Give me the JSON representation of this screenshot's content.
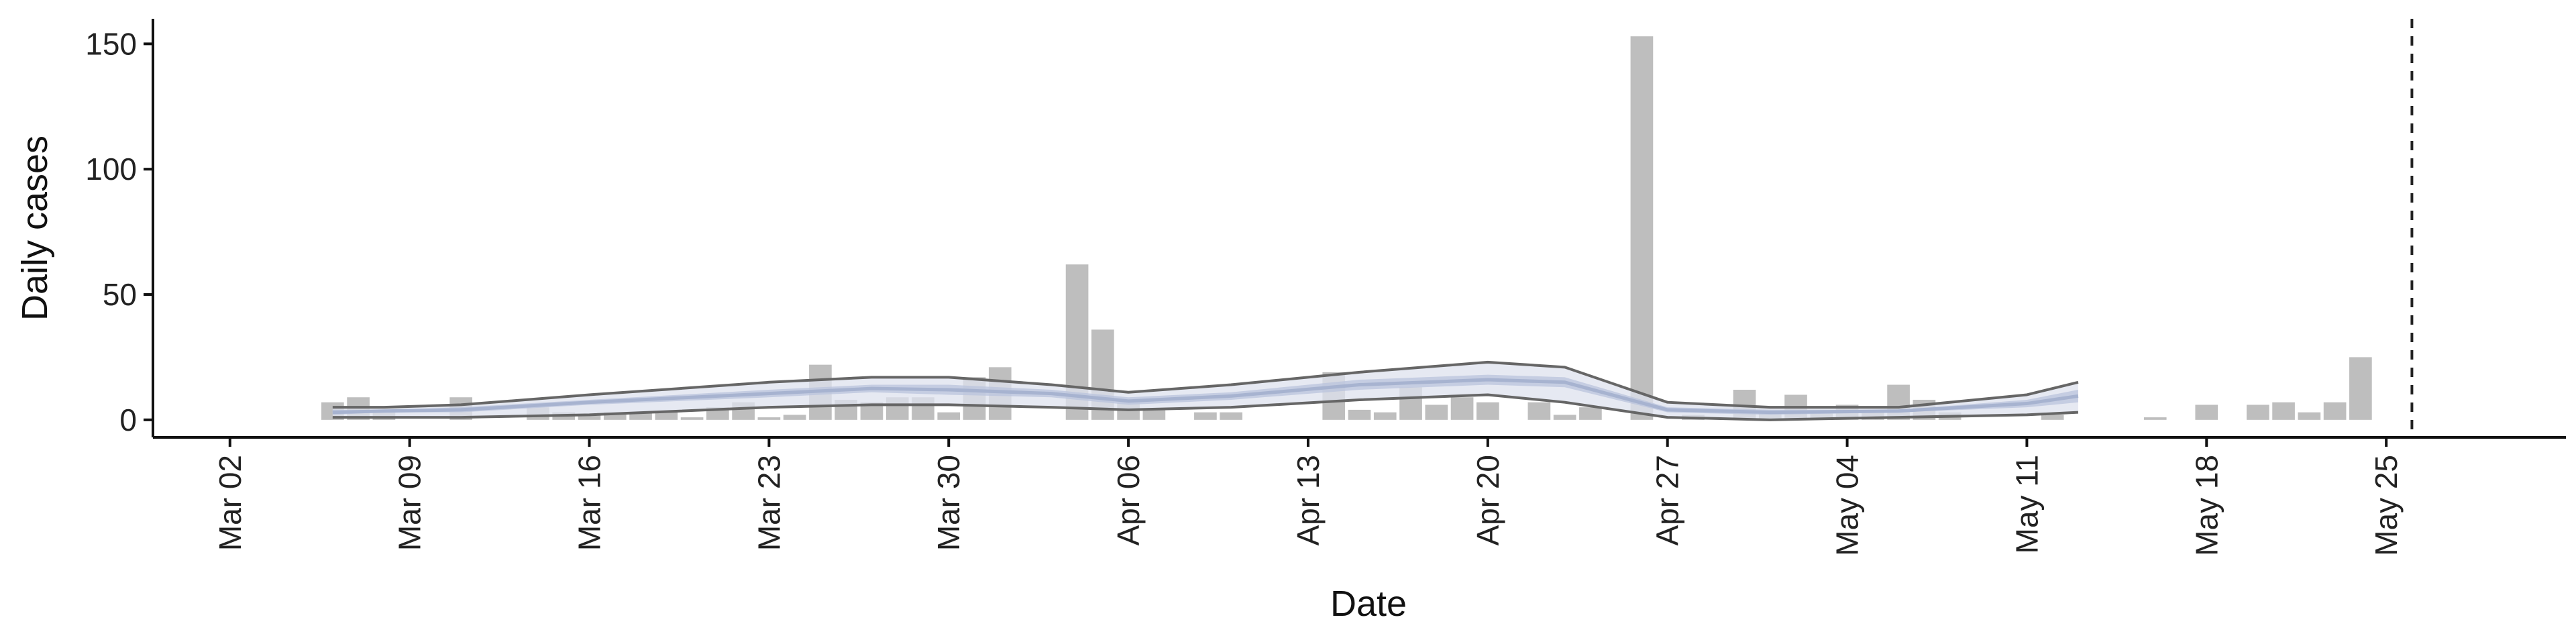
{
  "chart_data": {
    "type": "bar",
    "xlabel": "Date",
    "ylabel": "Daily cases",
    "ylim": [
      -7,
      160
    ],
    "xlim": [
      "2020-02-28",
      "2020-06-01"
    ],
    "grid": false,
    "legend": "none",
    "x_ticks": [
      "2020-03-02",
      "2020-03-09",
      "2020-03-16",
      "2020-03-23",
      "2020-03-30",
      "2020-04-06",
      "2020-04-13",
      "2020-04-20",
      "2020-04-27",
      "2020-05-04",
      "2020-05-11",
      "2020-05-18",
      "2020-05-25"
    ],
    "x_tick_labels": [
      "Mar 02",
      "Mar 09",
      "Mar 16",
      "Mar 23",
      "Mar 30",
      "Apr 06",
      "Apr 13",
      "Apr 20",
      "Apr 27",
      "May 04",
      "May 11",
      "May 18",
      "May 25"
    ],
    "y_ticks": [
      0,
      50,
      100,
      150
    ],
    "y_tick_labels": [
      "0",
      "50",
      "100",
      "150"
    ],
    "start_date": "2020-03-06",
    "daily_cases": [
      7,
      9,
      4,
      0,
      0,
      9,
      0,
      0,
      5,
      3,
      2,
      3,
      3,
      3,
      1,
      5,
      7,
      1,
      2,
      22,
      8,
      7,
      9,
      9,
      3,
      17,
      21,
      0,
      0,
      62,
      36,
      7,
      4,
      0,
      3,
      3,
      0,
      0,
      0,
      19,
      4,
      3,
      13,
      6,
      9,
      7,
      0,
      7,
      2,
      5,
      0,
      153,
      0,
      2,
      0,
      12,
      3,
      10,
      3,
      6,
      3,
      14,
      8,
      3,
      0,
      0,
      0,
      2,
      0,
      0,
      0,
      1,
      0,
      6,
      0,
      6,
      7,
      3,
      7,
      25
    ],
    "estimate_band": {
      "dates": [
        "2020-03-06",
        "2020-03-08",
        "2020-03-11",
        "2020-03-16",
        "2020-03-23",
        "2020-03-27",
        "2020-03-30",
        "2020-04-03",
        "2020-04-06",
        "2020-04-10",
        "2020-04-15",
        "2020-04-20",
        "2020-04-23",
        "2020-04-27",
        "2020-05-01",
        "2020-05-06",
        "2020-05-11",
        "2020-05-13"
      ],
      "outer_low": [
        1,
        1,
        1,
        2,
        5,
        6,
        6,
        5,
        4,
        5,
        8,
        10,
        7,
        1,
        0,
        1,
        2,
        3
      ],
      "outer_high": [
        5,
        5,
        6,
        10,
        15,
        17,
        17,
        14,
        11,
        14,
        19,
        23,
        21,
        7,
        5,
        5,
        10,
        15
      ],
      "inner_low": [
        2,
        3,
        3,
        6,
        9,
        11,
        10,
        9,
        6,
        8,
        12,
        14,
        13,
        3,
        2,
        3,
        5,
        7
      ],
      "inner_high": [
        4,
        4,
        5,
        8,
        12,
        14,
        14,
        12,
        9,
        11,
        16,
        18,
        17,
        5,
        4,
        4,
        8,
        12
      ],
      "median": [
        3,
        3.5,
        4,
        7,
        10.5,
        12.5,
        12,
        10.5,
        7.5,
        9.5,
        14,
        16,
        15,
        4,
        3,
        3.5,
        6.5,
        9.5
      ],
      "line_color": "#666666",
      "outer_color": "#dde2ee",
      "inner_color": "#b9c3dc"
    },
    "vline_date": "2020-05-26",
    "bar_color": "#bebebe"
  }
}
